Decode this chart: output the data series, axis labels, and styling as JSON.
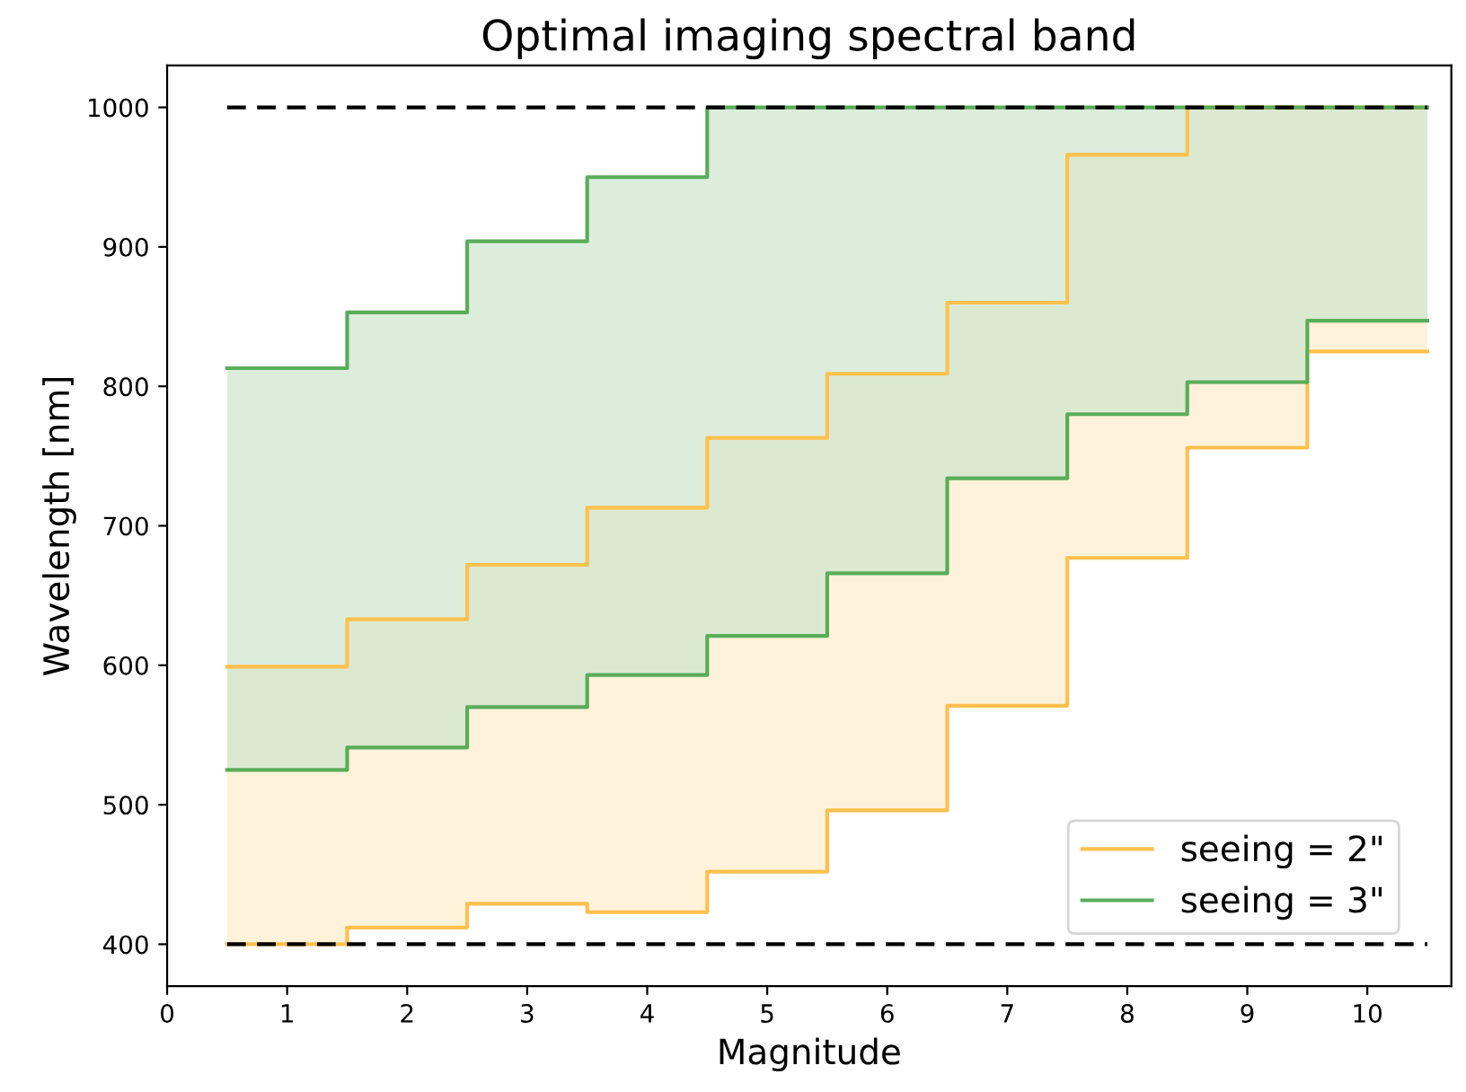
{
  "chart_data": {
    "type": "step",
    "title": "Optimal imaging spectral band",
    "xlabel": "Magnitude",
    "ylabel": "Wavelength [nm]",
    "x": [
      0.5,
      1.5,
      2.5,
      3.5,
      4.5,
      5.5,
      6.5,
      7.5,
      8.5,
      9.5,
      10.5
    ],
    "series": [
      {
        "name": "seeing = 2\"",
        "color": "#ffc04d",
        "values": [
          599,
          633,
          672,
          713,
          763,
          809,
          860,
          966,
          1000,
          1000,
          1000
        ],
        "upper": [
          599,
          633,
          672,
          713,
          763,
          809,
          860,
          966,
          1000,
          1000,
          1000
        ],
        "lower": [
          400,
          412,
          429,
          423,
          452,
          496,
          571,
          677,
          756,
          825,
          825
        ]
      },
      {
        "color": "#ffc04d",
        "values": [
          400,
          412,
          429,
          423,
          452,
          496,
          571,
          677,
          756,
          825,
          825
        ]
      },
      {
        "name": "seeing = 3\"",
        "color": "#59ad59",
        "values": [
          813,
          853,
          904,
          950,
          1000,
          1000,
          1000,
          1000,
          1000,
          1000,
          1000
        ],
        "upper": [
          813,
          853,
          904,
          950,
          1000,
          1000,
          1000,
          1000,
          1000,
          1000,
          1000
        ],
        "lower": [
          525,
          541,
          570,
          593,
          621,
          666,
          734,
          780,
          803,
          847,
          847
        ]
      },
      {
        "color": "#59ad59",
        "values": [
          525,
          541,
          570,
          593,
          621,
          666,
          734,
          780,
          803,
          847,
          847
        ]
      }
    ],
    "ref_lines": [
      {
        "axis": "y",
        "value": 400,
        "color": "#000000",
        "line_style": "dashed"
      },
      {
        "axis": "y",
        "value": 1000,
        "color": "#000000",
        "line_style": "dashed"
      }
    ],
    "xlim": [
      0,
      10.7
    ],
    "ylim": [
      370,
      1030
    ],
    "xticks": [
      0,
      1,
      2,
      3,
      4,
      5,
      6,
      7,
      8,
      9,
      10
    ],
    "yticks": [
      400,
      500,
      600,
      700,
      800,
      900,
      1000
    ],
    "legend": "lower right",
    "grid": false
  }
}
